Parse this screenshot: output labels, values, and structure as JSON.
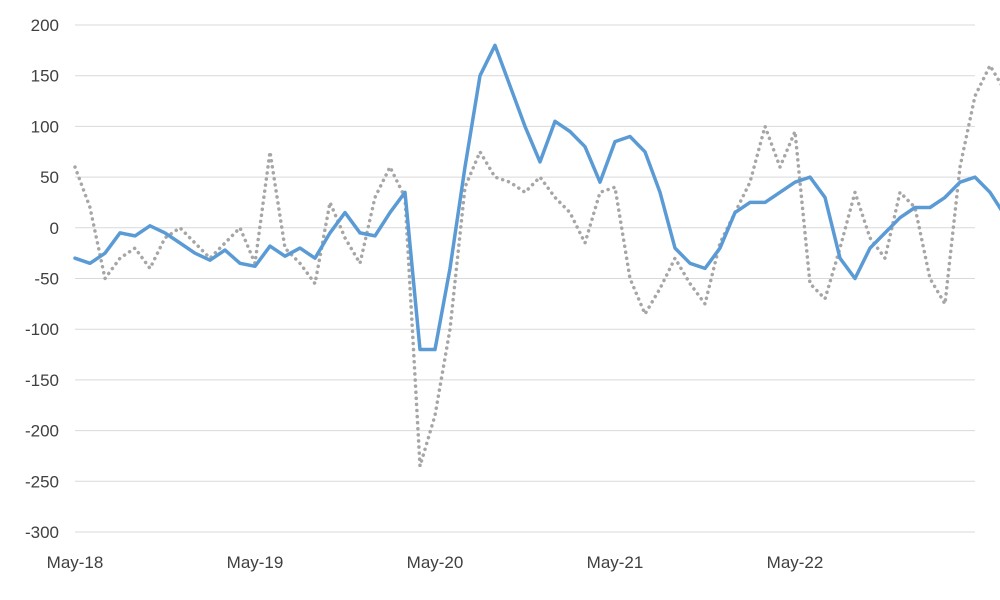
{
  "chart_data": {
    "type": "line",
    "title": "",
    "xlabel": "",
    "ylabel": "",
    "ylim": [
      -300,
      200
    ],
    "yticks": [
      200,
      150,
      100,
      50,
      0,
      -50,
      -100,
      -150,
      -200,
      -250,
      -300
    ],
    "xlim": [
      "2018-05",
      "2023-05"
    ],
    "xticks": [
      {
        "value": "2018-05",
        "label": "May-18"
      },
      {
        "value": "2019-05",
        "label": "May-19"
      },
      {
        "value": "2020-05",
        "label": "May-20"
      },
      {
        "value": "2021-05",
        "label": "May-21"
      },
      {
        "value": "2022-05",
        "label": "May-22"
      }
    ],
    "grid": "horizontal",
    "legend": "none",
    "series": [
      {
        "color": "#5b9bd5",
        "style": "solid",
        "points": [
          [
            "2018-05",
            -30
          ],
          [
            "2018-06",
            -35
          ],
          [
            "2018-07",
            -25
          ],
          [
            "2018-08",
            -5
          ],
          [
            "2018-09",
            -8
          ],
          [
            "2018-10",
            2
          ],
          [
            "2018-11",
            -5
          ],
          [
            "2018-12",
            -15
          ],
          [
            "2019-01",
            -25
          ],
          [
            "2019-02",
            -32
          ],
          [
            "2019-03",
            -22
          ],
          [
            "2019-04",
            -35
          ],
          [
            "2019-05",
            -38
          ],
          [
            "2019-06",
            -18
          ],
          [
            "2019-07",
            -28
          ],
          [
            "2019-08",
            -20
          ],
          [
            "2019-09",
            -30
          ],
          [
            "2019-10",
            -5
          ],
          [
            "2019-11",
            15
          ],
          [
            "2019-12",
            -5
          ],
          [
            "2020-01",
            -8
          ],
          [
            "2020-02",
            15
          ],
          [
            "2020-03",
            35
          ],
          [
            "2020-04",
            -120
          ],
          [
            "2020-05",
            -120
          ],
          [
            "2020-06",
            -40
          ],
          [
            "2020-07",
            60
          ],
          [
            "2020-08",
            150
          ],
          [
            "2020-09",
            180
          ],
          [
            "2020-10",
            140
          ],
          [
            "2020-11",
            100
          ],
          [
            "2020-12",
            65
          ],
          [
            "2021-01",
            105
          ],
          [
            "2021-02",
            95
          ],
          [
            "2021-03",
            80
          ],
          [
            "2021-04",
            45
          ],
          [
            "2021-05",
            85
          ],
          [
            "2021-06",
            90
          ],
          [
            "2021-07",
            75
          ],
          [
            "2021-08",
            35
          ],
          [
            "2021-09",
            -20
          ],
          [
            "2021-10",
            -35
          ],
          [
            "2021-11",
            -40
          ],
          [
            "2021-12",
            -20
          ],
          [
            "2022-01",
            15
          ],
          [
            "2022-02",
            25
          ],
          [
            "2022-03",
            25
          ],
          [
            "2022-04",
            35
          ],
          [
            "2022-05",
            45
          ],
          [
            "2022-06",
            50
          ],
          [
            "2022-07",
            30
          ],
          [
            "2022-08",
            -30
          ],
          [
            "2022-09",
            -50
          ],
          [
            "2022-10",
            -20
          ],
          [
            "2022-11",
            -5
          ],
          [
            "2022-12",
            10
          ],
          [
            "2023-01",
            20
          ],
          [
            "2023-02",
            20
          ],
          [
            "2023-03",
            30
          ],
          [
            "2023-04",
            45
          ],
          [
            "2023-05",
            50
          ],
          [
            "2023-06",
            35
          ],
          [
            "2023-07",
            12
          ]
        ]
      },
      {
        "color": "#a6a6a6",
        "style": "dotted",
        "points": [
          [
            "2018-05",
            60
          ],
          [
            "2018-06",
            20
          ],
          [
            "2018-07",
            -50
          ],
          [
            "2018-08",
            -30
          ],
          [
            "2018-09",
            -20
          ],
          [
            "2018-10",
            -40
          ],
          [
            "2018-11",
            -10
          ],
          [
            "2018-12",
            0
          ],
          [
            "2019-01",
            -15
          ],
          [
            "2019-02",
            -30
          ],
          [
            "2019-03",
            -15
          ],
          [
            "2019-04",
            0
          ],
          [
            "2019-05",
            -35
          ],
          [
            "2019-06",
            75
          ],
          [
            "2019-07",
            -20
          ],
          [
            "2019-08",
            -35
          ],
          [
            "2019-09",
            -55
          ],
          [
            "2019-10",
            25
          ],
          [
            "2019-11",
            -10
          ],
          [
            "2019-12",
            -35
          ],
          [
            "2020-01",
            30
          ],
          [
            "2020-02",
            60
          ],
          [
            "2020-03",
            30
          ],
          [
            "2020-04",
            -235
          ],
          [
            "2020-05",
            -185
          ],
          [
            "2020-06",
            -100
          ],
          [
            "2020-07",
            40
          ],
          [
            "2020-08",
            75
          ],
          [
            "2020-09",
            50
          ],
          [
            "2020-10",
            45
          ],
          [
            "2020-11",
            35
          ],
          [
            "2020-12",
            50
          ],
          [
            "2021-01",
            30
          ],
          [
            "2021-02",
            15
          ],
          [
            "2021-03",
            -15
          ],
          [
            "2021-04",
            35
          ],
          [
            "2021-05",
            40
          ],
          [
            "2021-06",
            -50
          ],
          [
            "2021-07",
            -85
          ],
          [
            "2021-08",
            -60
          ],
          [
            "2021-09",
            -30
          ],
          [
            "2021-10",
            -55
          ],
          [
            "2021-11",
            -75
          ],
          [
            "2021-12",
            -15
          ],
          [
            "2022-01",
            15
          ],
          [
            "2022-02",
            45
          ],
          [
            "2022-03",
            100
          ],
          [
            "2022-04",
            60
          ],
          [
            "2022-05",
            95
          ],
          [
            "2022-06",
            -55
          ],
          [
            "2022-07",
            -70
          ],
          [
            "2022-08",
            -20
          ],
          [
            "2022-09",
            35
          ],
          [
            "2022-10",
            -10
          ],
          [
            "2022-11",
            -30
          ],
          [
            "2022-12",
            35
          ],
          [
            "2023-01",
            20
          ],
          [
            "2023-02",
            -50
          ],
          [
            "2023-03",
            -75
          ],
          [
            "2023-04",
            60
          ],
          [
            "2023-05",
            130
          ],
          [
            "2023-06",
            160
          ],
          [
            "2023-07",
            135
          ]
        ]
      }
    ]
  }
}
